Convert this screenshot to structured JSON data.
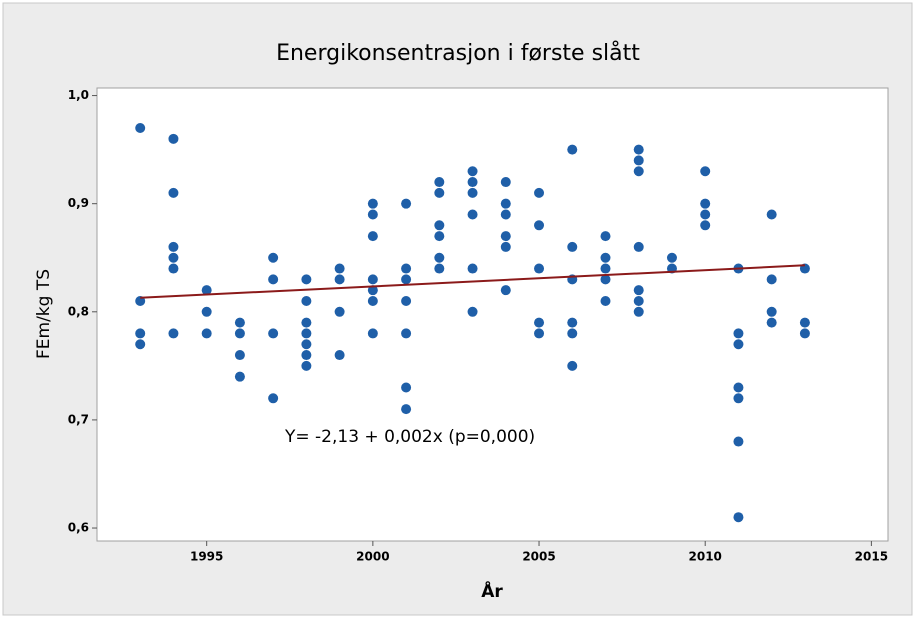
{
  "chart_data": {
    "type": "scatter",
    "title": "Energikonsentrasjon i første slått",
    "x_label": "År",
    "y_label": "FEm/kg TS",
    "annotation": "Y= -2,13 + 0,002x (p=0,000)",
    "color": "#1f5fa8",
    "x": [
      1993,
      1993,
      1993,
      1993,
      1994,
      1994,
      1994,
      1994,
      1994,
      1994,
      1995,
      1995,
      1995,
      1996,
      1996,
      1996,
      1996,
      1997,
      1997,
      1997,
      1997,
      1998,
      1998,
      1998,
      1998,
      1998,
      1998,
      1998,
      1999,
      1999,
      1999,
      1999,
      2000,
      2000,
      2000,
      2000,
      2000,
      2000,
      2000,
      2001,
      2001,
      2001,
      2001,
      2001,
      2001,
      2001,
      2002,
      2002,
      2002,
      2002,
      2002,
      2002,
      2003,
      2003,
      2003,
      2003,
      2003,
      2003,
      2004,
      2004,
      2004,
      2004,
      2004,
      2004,
      2005,
      2005,
      2005,
      2005,
      2005,
      2006,
      2006,
      2006,
      2006,
      2006,
      2006,
      2007,
      2007,
      2007,
      2007,
      2007,
      2008,
      2008,
      2008,
      2008,
      2008,
      2008,
      2008,
      2009,
      2009,
      2010,
      2010,
      2010,
      2010,
      2011,
      2011,
      2011,
      2011,
      2011,
      2011,
      2011,
      2012,
      2012,
      2012,
      2012,
      2013,
      2013,
      2013
    ],
    "values": [
      0.97,
      0.81,
      0.78,
      0.77,
      0.96,
      0.91,
      0.86,
      0.85,
      0.84,
      0.78,
      0.82,
      0.8,
      0.78,
      0.79,
      0.78,
      0.76,
      0.74,
      0.85,
      0.83,
      0.78,
      0.72,
      0.83,
      0.81,
      0.79,
      0.78,
      0.77,
      0.76,
      0.75,
      0.84,
      0.83,
      0.8,
      0.76,
      0.9,
      0.89,
      0.87,
      0.83,
      0.82,
      0.81,
      0.78,
      0.9,
      0.84,
      0.83,
      0.81,
      0.78,
      0.73,
      0.71,
      0.92,
      0.91,
      0.88,
      0.87,
      0.85,
      0.84,
      0.93,
      0.92,
      0.91,
      0.89,
      0.84,
      0.8,
      0.92,
      0.9,
      0.89,
      0.87,
      0.86,
      0.82,
      0.91,
      0.88,
      0.84,
      0.79,
      0.78,
      0.95,
      0.86,
      0.83,
      0.79,
      0.78,
      0.75,
      0.87,
      0.85,
      0.84,
      0.83,
      0.81,
      0.95,
      0.94,
      0.93,
      0.86,
      0.82,
      0.81,
      0.8,
      0.85,
      0.84,
      0.93,
      0.9,
      0.89,
      0.88,
      0.84,
      0.78,
      0.77,
      0.73,
      0.72,
      0.68,
      0.61,
      0.89,
      0.83,
      0.8,
      0.79,
      0.84,
      0.79,
      0.78
    ],
    "trend": {
      "x": [
        1993,
        2013
      ],
      "values": [
        0.813,
        0.843
      ],
      "color": "#8b1a1a"
    },
    "xlim": [
      1991.7,
      2015.5
    ],
    "ylim": [
      0.588,
      1.007
    ],
    "xticks": [
      1995,
      2000,
      2005,
      2010,
      2015
    ],
    "yticks": [
      {
        "value": 0.6,
        "label": "0,6"
      },
      {
        "value": 0.7,
        "label": "0,7"
      },
      {
        "value": 0.8,
        "label": "0,8"
      },
      {
        "value": 0.9,
        "label": "0,9"
      },
      {
        "value": 1.0,
        "label": "1,0"
      }
    ]
  }
}
